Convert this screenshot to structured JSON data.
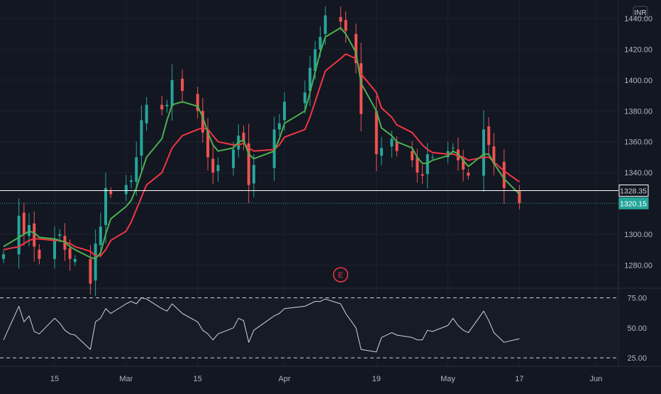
{
  "chart_data": {
    "type": "candlestick",
    "currency_badge": "INR",
    "x_tick_labels": [
      {
        "label": "15",
        "date": "2021-02-15"
      },
      {
        "label": "Mar",
        "date": "2021-03-01"
      },
      {
        "label": "15",
        "date": "2021-03-15"
      },
      {
        "label": "Apr",
        "date": "2021-04-01"
      },
      {
        "label": "19",
        "date": "2021-04-19"
      },
      {
        "label": "May",
        "date": "2021-05-03"
      },
      {
        "label": "17",
        "date": "2021-05-17"
      },
      {
        "label": "Jun",
        "date": "2021-06-01"
      }
    ],
    "price_axis": {
      "ticks": [
        "1440.00",
        "1420.00",
        "1400.00",
        "1380.00",
        "1360.00",
        "1340.00",
        "1300.00",
        "1280.00"
      ],
      "ylim": [
        1265,
        1452
      ]
    },
    "price_markers": [
      {
        "label": "1328.35",
        "value": 1328.35,
        "style": "solid",
        "color": "#ffffff"
      },
      {
        "label": "1320.15",
        "value": 1320.15,
        "style": "dotted",
        "color": "#26a69a"
      }
    ],
    "event_marker": {
      "label": "E",
      "date": "2021-04-12",
      "color": "#f23645"
    },
    "colors": {
      "background": "#131722",
      "up": "#26a69a",
      "down": "#ef5350",
      "ma_fast": "#4caf50",
      "ma_slow": "#f23645",
      "rsi": "#d1d4dc",
      "grid": "#1e2230",
      "axis_text": "#b2b5be"
    },
    "price_series": {
      "dates": [
        "2021-02-05",
        "2021-02-08",
        "2021-02-09",
        "2021-02-10",
        "2021-02-11",
        "2021-02-12",
        "2021-02-15",
        "2021-02-16",
        "2021-02-17",
        "2021-02-18",
        "2021-02-19",
        "2021-02-22",
        "2021-02-23",
        "2021-02-24",
        "2021-02-25",
        "2021-02-26",
        "2021-03-01",
        "2021-03-02",
        "2021-03-03",
        "2021-03-04",
        "2021-03-05",
        "2021-03-08",
        "2021-03-09",
        "2021-03-10",
        "2021-03-12",
        "2021-03-15",
        "2021-03-16",
        "2021-03-17",
        "2021-03-18",
        "2021-03-19",
        "2021-03-22",
        "2021-03-23",
        "2021-03-24",
        "2021-03-25",
        "2021-03-26",
        "2021-03-30",
        "2021-03-31",
        "2021-04-01",
        "2021-04-05",
        "2021-04-06",
        "2021-04-07",
        "2021-04-08",
        "2021-04-09",
        "2021-04-12",
        "2021-04-13",
        "2021-04-15",
        "2021-04-16",
        "2021-04-19",
        "2021-04-20",
        "2021-04-22",
        "2021-04-23",
        "2021-04-26",
        "2021-04-27",
        "2021-04-28",
        "2021-04-29",
        "2021-04-30",
        "2021-05-03",
        "2021-05-04",
        "2021-05-05",
        "2021-05-06",
        "2021-05-07",
        "2021-05-10",
        "2021-05-11",
        "2021-05-12",
        "2021-05-14",
        "2021-05-17"
      ],
      "close": [
        1287,
        1312,
        1300,
        1306,
        1292,
        1284,
        1297,
        1300,
        1290,
        1284,
        1284,
        1268,
        1294,
        1305,
        1330,
        1326,
        1332,
        1335,
        1350,
        1374,
        1384,
        1381,
        1384,
        1400,
        1393,
        1380,
        1366,
        1350,
        1340,
        1345,
        1355,
        1364,
        1360,
        1332,
        1345,
        1368,
        1372,
        1386,
        1392,
        1408,
        1420,
        1428,
        1442,
        1438,
        1432,
        1411,
        1378,
        1352,
        1356,
        1362,
        1354,
        1348,
        1340,
        1338,
        1352,
        1350,
        1354,
        1356,
        1348,
        1342,
        1338,
        1368,
        1358,
        1346,
        1330,
        1320.15
      ],
      "ma_fast": [
        1292,
        1298,
        1300,
        1302,
        1301,
        1298,
        1297,
        1296,
        1295,
        1292,
        1290,
        1285,
        1284,
        1288,
        1300,
        1310,
        1318,
        1322,
        1330,
        1340,
        1350,
        1362,
        1374,
        1384,
        1386,
        1383,
        1376,
        1366,
        1358,
        1354,
        1356,
        1360,
        1361,
        1352,
        1349,
        1354,
        1362,
        1372,
        1380,
        1392,
        1405,
        1418,
        1428,
        1434,
        1430,
        1418,
        1398,
        1380,
        1369,
        1364,
        1360,
        1356,
        1350,
        1346,
        1346,
        1348,
        1351,
        1354,
        1352,
        1348,
        1344,
        1352,
        1352,
        1346,
        1336,
        1326
      ],
      "ma_slow": [
        1290,
        1292,
        1294,
        1296,
        1297,
        1297,
        1296,
        1296,
        1295,
        1294,
        1292,
        1289,
        1286,
        1286,
        1290,
        1296,
        1302,
        1308,
        1316,
        1324,
        1332,
        1340,
        1348,
        1356,
        1364,
        1368,
        1369,
        1368,
        1364,
        1360,
        1358,
        1358,
        1359,
        1356,
        1354,
        1355,
        1358,
        1363,
        1368,
        1376,
        1386,
        1396,
        1406,
        1414,
        1417,
        1414,
        1404,
        1392,
        1382,
        1376,
        1371,
        1366,
        1362,
        1358,
        1355,
        1353,
        1352,
        1352,
        1351,
        1350,
        1348,
        1350,
        1350,
        1347,
        1341,
        1334
      ]
    },
    "rsi": {
      "ticks": [
        "75.00",
        "50.00",
        "25.00"
      ],
      "ylim": [
        18,
        83
      ],
      "levels": [
        75,
        25
      ],
      "values": [
        40,
        68,
        55,
        60,
        47,
        45,
        58,
        54,
        48,
        45,
        44,
        32,
        55,
        58,
        66,
        62,
        70,
        72,
        70,
        75,
        74,
        66,
        64,
        70,
        62,
        55,
        48,
        45,
        40,
        45,
        50,
        58,
        56,
        38,
        48,
        60,
        62,
        66,
        68,
        70,
        72,
        72,
        74,
        70,
        62,
        50,
        32,
        30,
        42,
        46,
        44,
        42,
        40,
        40,
        48,
        47,
        52,
        58,
        52,
        48,
        46,
        64,
        56,
        46,
        38,
        41
      ]
    }
  }
}
